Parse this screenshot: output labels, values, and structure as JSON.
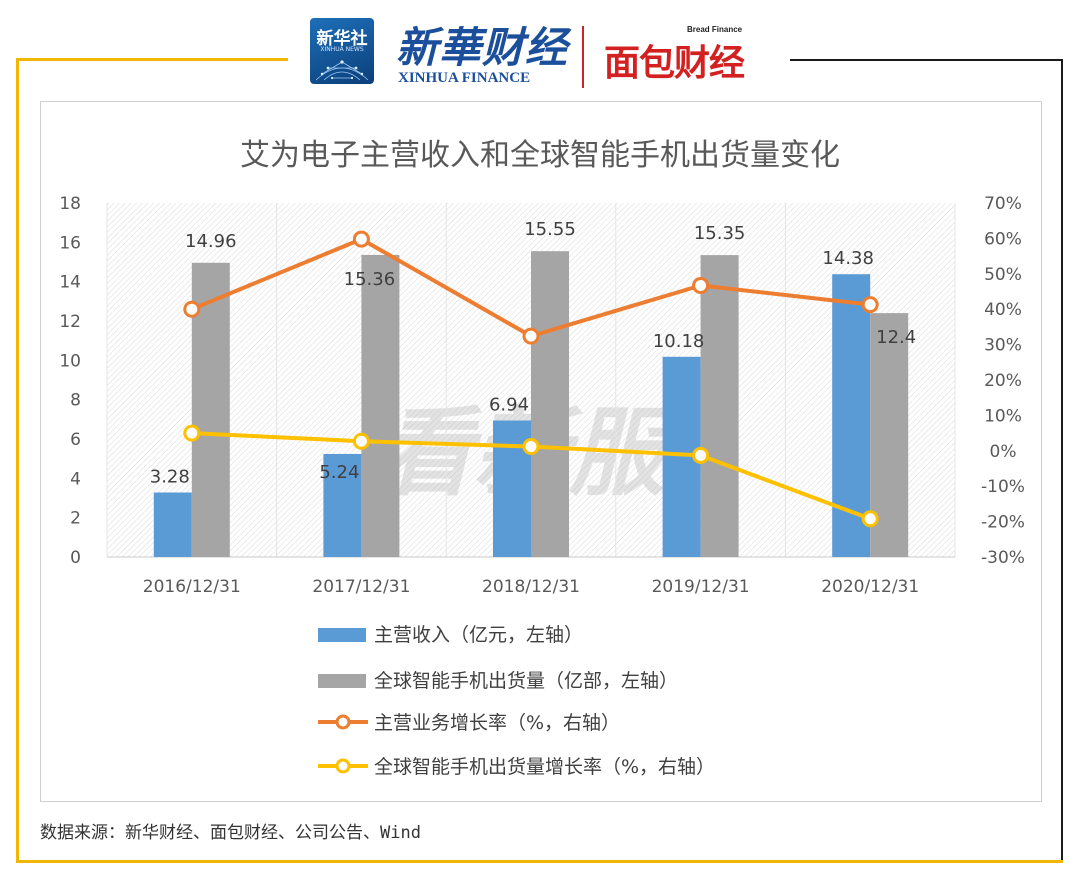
{
  "header": {
    "xinhua_badge_cn": "新华社",
    "xinhua_badge_en": "XINHUA NEWS",
    "xinhua_finance_cn": "新華财经",
    "xinhua_finance_en": "XINHUA FINANCE",
    "bread_finance_en": "Bread Finance",
    "bread_finance_cn": "面包财经"
  },
  "colors": {
    "frame_gold": "#f2b705",
    "revenue_bar": "#5b9bd5",
    "shipment_bar": "#a5a5a5",
    "revenue_growth_line": "#ed7d31",
    "shipment_growth_line": "#ffc000"
  },
  "chart_data": {
    "type": "bar",
    "title": "艾为电子主营收入和全球智能手机出货量变化",
    "categories": [
      "2016/12/31",
      "2017/12/31",
      "2018/12/31",
      "2019/12/31",
      "2020/12/31"
    ],
    "y_left": {
      "min": 0,
      "max": 18,
      "step": 2,
      "ticks": [
        "0",
        "2",
        "4",
        "6",
        "8",
        "10",
        "12",
        "14",
        "16",
        "18"
      ]
    },
    "y_right": {
      "min": -30,
      "max": 70,
      "step": 10,
      "ticks": [
        "-30%",
        "-20%",
        "-10%",
        "0%",
        "10%",
        "20%",
        "30%",
        "40%",
        "50%",
        "60%",
        "70%"
      ]
    },
    "series": [
      {
        "name": "主营收入（亿元，左轴）",
        "type": "bar",
        "axis": "left",
        "values": [
          3.28,
          5.24,
          6.94,
          10.18,
          14.38
        ],
        "labels": [
          "3.28",
          "5.24",
          "6.94",
          "10.18",
          "14.38"
        ]
      },
      {
        "name": "全球智能手机出货量（亿部，左轴）",
        "type": "bar",
        "axis": "left",
        "values": [
          14.96,
          15.36,
          15.55,
          15.35,
          12.4
        ],
        "labels": [
          "14.96",
          "15.36",
          "15.55",
          "15.35",
          "12.4"
        ]
      },
      {
        "name": "主营业务增长率（%，右轴）",
        "type": "line",
        "axis": "right",
        "values": [
          40,
          59.8,
          32.4,
          46.7,
          41.3
        ]
      },
      {
        "name": "全球智能手机出货量增长率（%，右轴）",
        "type": "line",
        "axis": "right",
        "values": [
          5,
          2.7,
          1.2,
          -1.3,
          -19.2
        ]
      }
    ],
    "grid": false,
    "legend_position": "bottom",
    "watermark": "看新服"
  },
  "source": "数据来源：新华财经、面包财经、公司公告、Wind"
}
